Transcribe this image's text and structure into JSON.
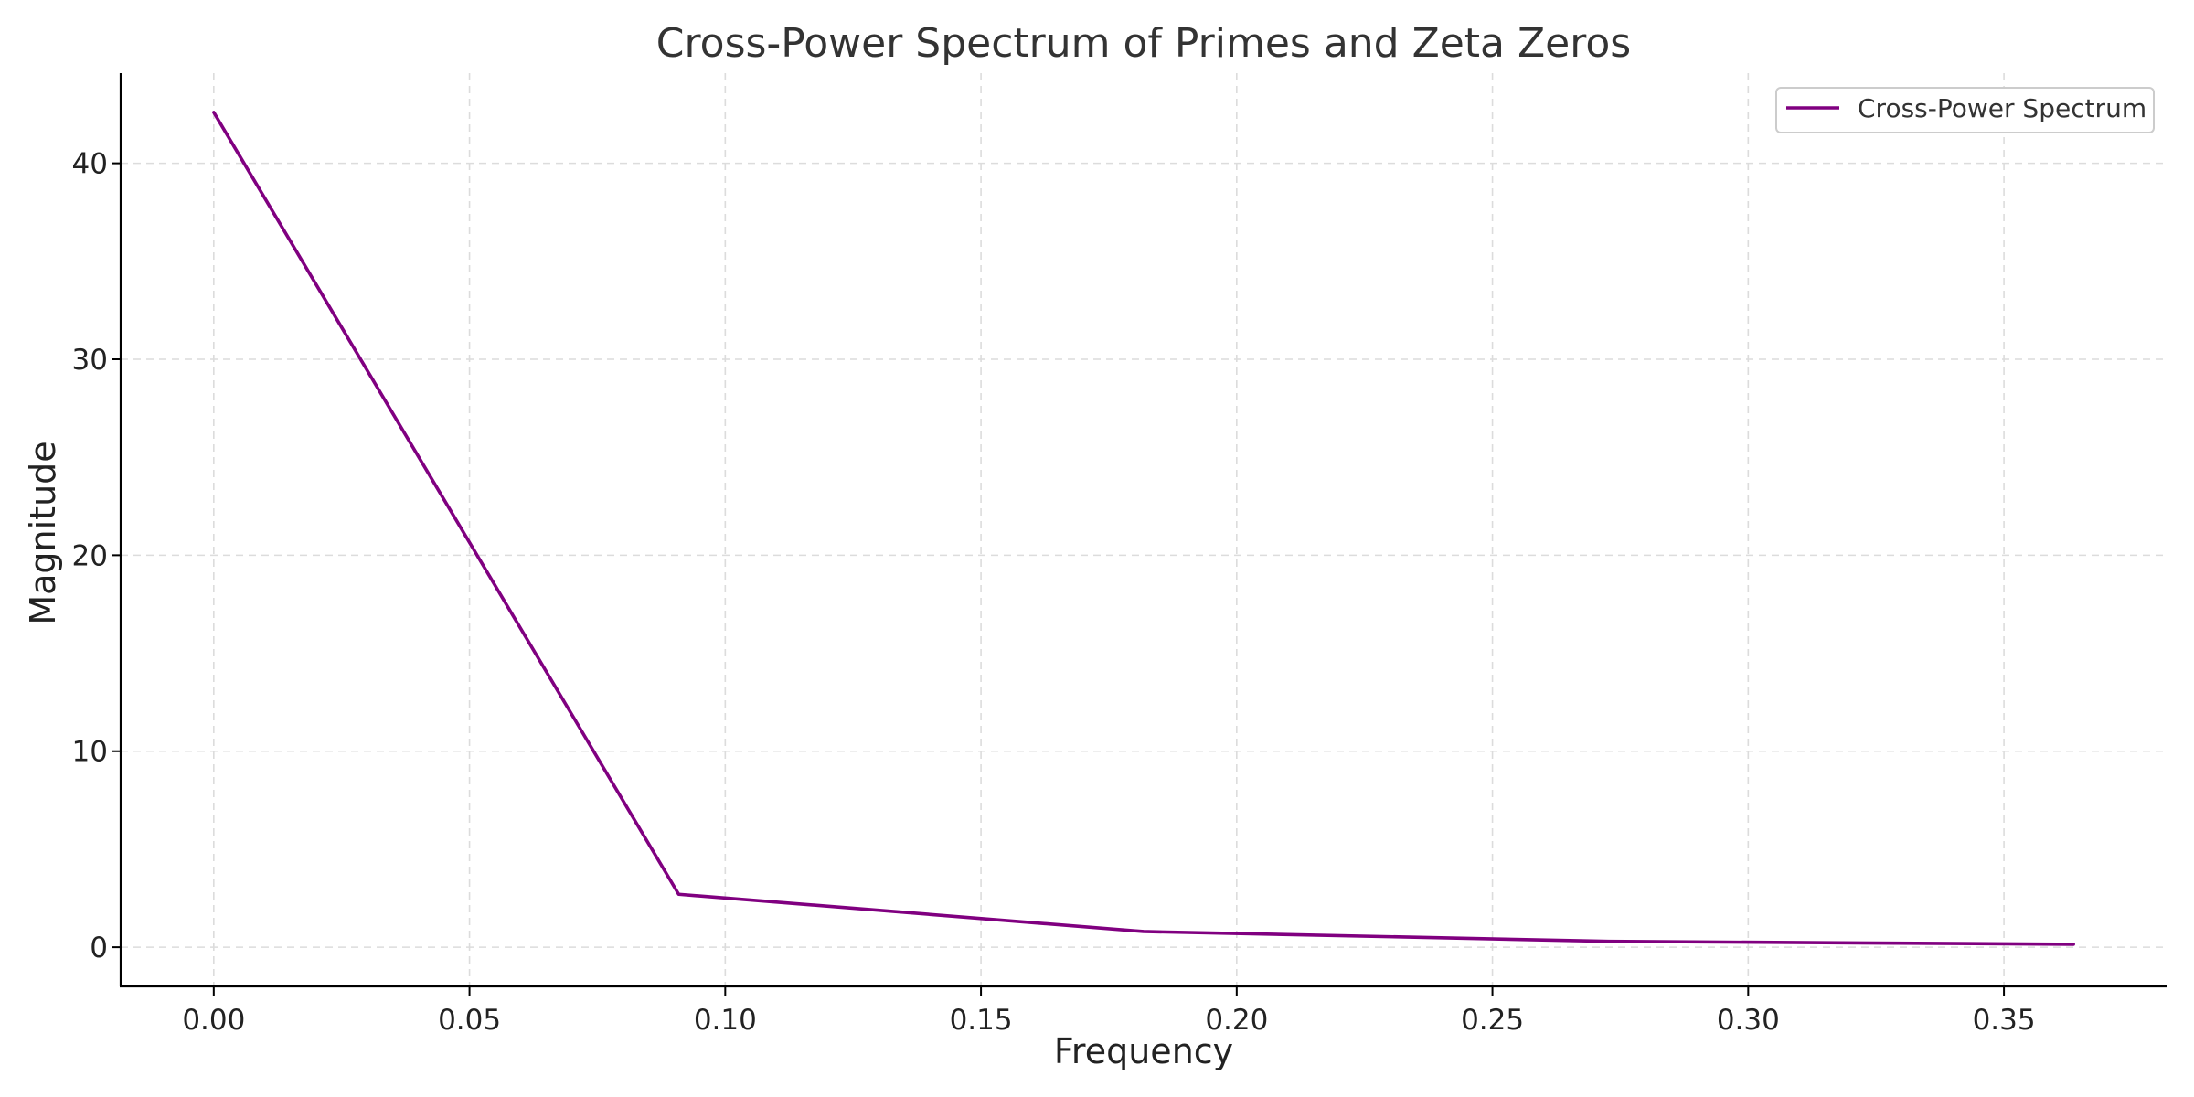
{
  "chart_data": {
    "type": "line",
    "title": "Cross-Power Spectrum of Primes and Zeta Zeros",
    "xlabel": "Frequency",
    "ylabel": "Magnitude",
    "xlim": [
      -0.0182,
      0.3818
    ],
    "ylim": [
      -2.0,
      44.6
    ],
    "xticks": [
      0.0,
      0.05,
      0.1,
      0.15,
      0.2,
      0.25,
      0.3,
      0.35
    ],
    "xtick_labels": [
      "0.00",
      "0.05",
      "0.10",
      "0.15",
      "0.20",
      "0.25",
      "0.30",
      "0.35"
    ],
    "yticks": [
      0,
      10,
      20,
      30,
      40
    ],
    "ytick_labels": [
      "0",
      "10",
      "20",
      "30",
      "40"
    ],
    "grid": true,
    "legend_position": "top-right",
    "series": [
      {
        "name": "Cross-Power Spectrum",
        "color": "#800080",
        "x": [
          0.0,
          0.0909,
          0.1818,
          0.2727,
          0.3636
        ],
        "y": [
          42.6,
          2.7,
          0.8,
          0.3,
          0.15
        ]
      }
    ]
  }
}
